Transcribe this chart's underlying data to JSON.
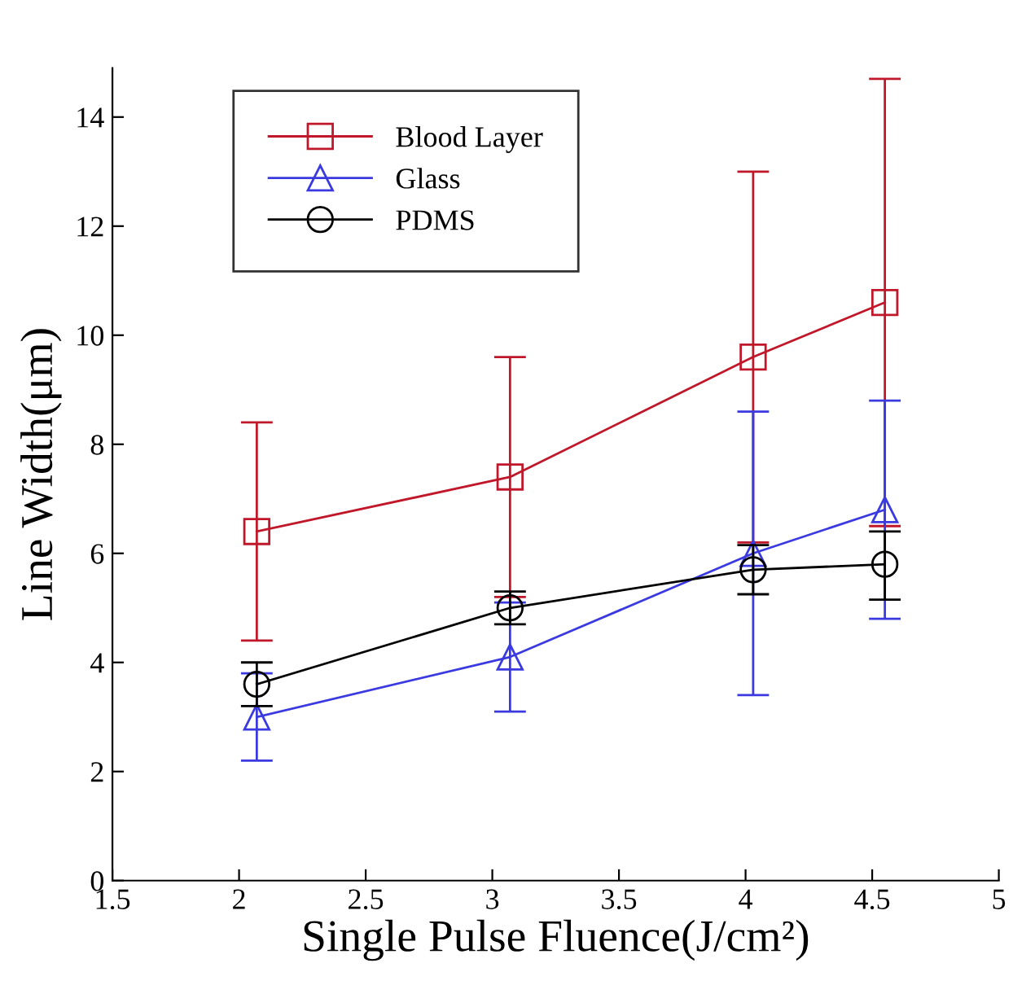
{
  "chart_data": {
    "type": "line",
    "xlabel": "Single Pulse Fluence(J/cm²)",
    "ylabel": "Line Width(μm)",
    "xlim": [
      1.5,
      5
    ],
    "xticks": [
      1.5,
      2,
      2.5,
      3,
      3.5,
      4,
      4.5,
      5
    ],
    "ylim": [
      0,
      14.9
    ],
    "yticks": [
      0,
      2,
      4,
      6,
      8,
      10,
      12,
      14
    ],
    "grid": false,
    "legend": "top left",
    "series": [
      {
        "name": "Blood Layer",
        "color": "#c0182a",
        "marker": "square",
        "x": [
          2.07,
          3.07,
          4.03,
          4.55
        ],
        "values": [
          6.4,
          7.4,
          9.6,
          10.6
        ],
        "errors": [
          [
            4.4,
            8.4
          ],
          [
            5.2,
            9.6
          ],
          [
            6.2,
            13.0
          ],
          [
            6.5,
            14.7
          ]
        ]
      },
      {
        "name": "Glass",
        "color": "#3a3ae0",
        "marker": "triangle",
        "x": [
          2.07,
          3.07,
          4.03,
          4.55
        ],
        "values": [
          3.0,
          4.1,
          6.0,
          6.8
        ],
        "errors": [
          [
            2.2,
            3.8
          ],
          [
            3.1,
            5.1
          ],
          [
            3.4,
            8.6
          ],
          [
            4.8,
            8.8
          ]
        ]
      },
      {
        "name": "PDMS",
        "color": "#000000",
        "marker": "circle",
        "x": [
          2.07,
          3.07,
          4.03,
          4.55
        ],
        "values": [
          3.6,
          5.0,
          5.7,
          5.8
        ],
        "errors": [
          [
            3.2,
            4.0
          ],
          [
            4.7,
            5.3
          ],
          [
            5.25,
            6.15
          ],
          [
            5.15,
            6.4
          ]
        ]
      }
    ]
  }
}
